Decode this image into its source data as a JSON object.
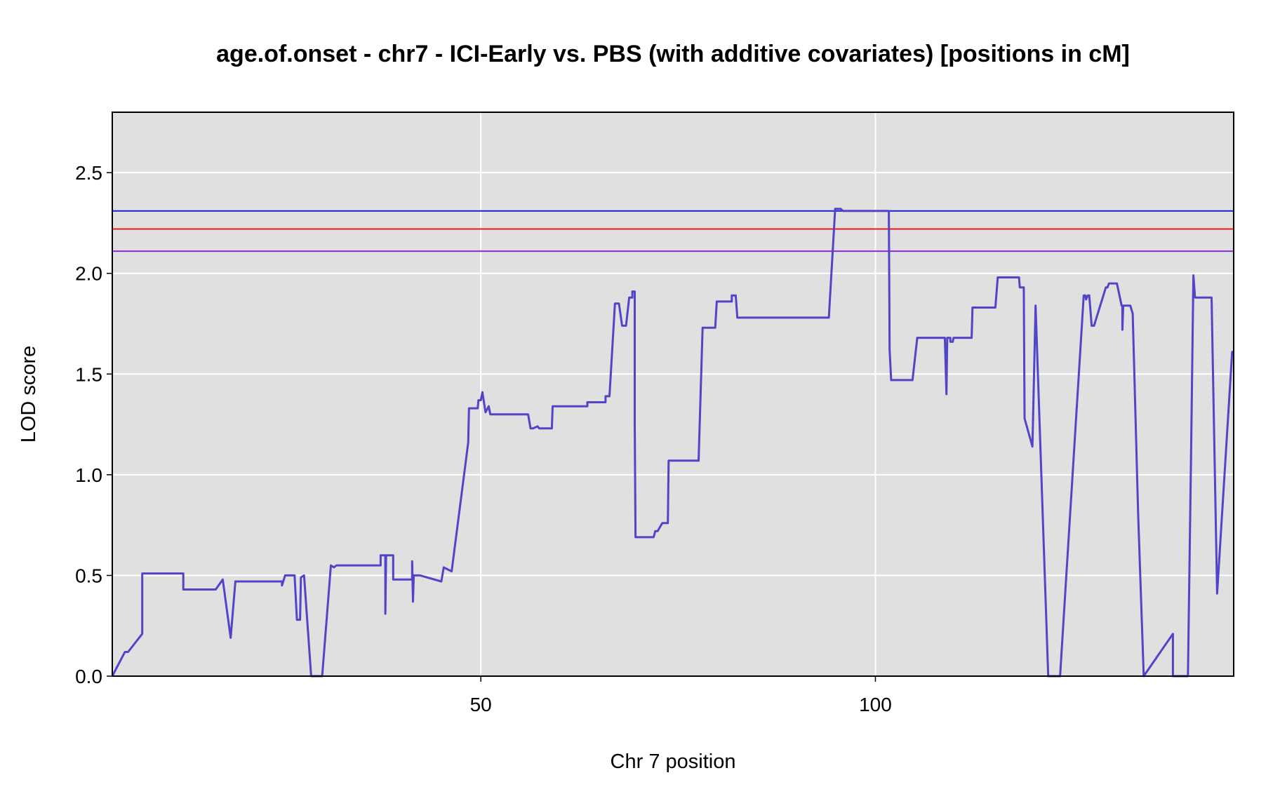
{
  "chart_data": {
    "type": "line",
    "title": "age.of.onset - chr7 - ICI-Early vs. PBS (with additive covariates) [positions in cM]",
    "xlabel": "Chr 7 position",
    "ylabel": "LOD score",
    "xlim": [
      3.3,
      145.4
    ],
    "ylim": [
      0,
      2.8
    ],
    "x_ticks": [
      50,
      100
    ],
    "y_ticks": [
      0.0,
      0.5,
      1.0,
      1.5,
      2.0,
      2.5
    ],
    "x_tick_labels": [
      "50",
      "100"
    ],
    "y_tick_labels": [
      "0.0",
      "0.5",
      "1.0",
      "1.5",
      "2.0",
      "2.5"
    ],
    "grid": true,
    "background": "#e0e0e0",
    "thresholds": [
      {
        "value": 2.31,
        "color": "#1f1fd0"
      },
      {
        "value": 2.22,
        "color": "#e41a1c"
      },
      {
        "value": 2.11,
        "color": "#8a2be2"
      }
    ],
    "series": [
      {
        "color": "#5244c8",
        "points": [
          [
            3.3,
            0.0
          ],
          [
            4.9,
            0.12
          ],
          [
            5.3,
            0.12
          ],
          [
            7.1,
            0.21
          ],
          [
            7.1,
            0.51
          ],
          [
            12.3,
            0.51
          ],
          [
            12.3,
            0.43
          ],
          [
            16.4,
            0.43
          ],
          [
            17.3,
            0.48
          ],
          [
            18.3,
            0.19
          ],
          [
            18.9,
            0.47
          ],
          [
            24.8,
            0.47
          ],
          [
            24.8,
            0.45
          ],
          [
            25.2,
            0.5
          ],
          [
            26.4,
            0.5
          ],
          [
            26.7,
            0.28
          ],
          [
            27.1,
            0.28
          ],
          [
            27.2,
            0.49
          ],
          [
            27.6,
            0.5
          ],
          [
            28.5,
            0.0
          ],
          [
            29.9,
            0.0
          ],
          [
            31.0,
            0.55
          ],
          [
            31.4,
            0.54
          ],
          [
            31.7,
            0.55
          ],
          [
            37.3,
            0.55
          ],
          [
            37.3,
            0.6
          ],
          [
            37.9,
            0.6
          ],
          [
            37.9,
            0.31
          ],
          [
            38.0,
            0.6
          ],
          [
            38.9,
            0.6
          ],
          [
            38.9,
            0.48
          ],
          [
            41.3,
            0.48
          ],
          [
            41.3,
            0.57
          ],
          [
            41.4,
            0.37
          ],
          [
            41.5,
            0.5
          ],
          [
            42.3,
            0.5
          ],
          [
            45.0,
            0.47
          ],
          [
            45.3,
            0.54
          ],
          [
            46.3,
            0.52
          ],
          [
            48.4,
            1.16
          ],
          [
            48.5,
            1.33
          ],
          [
            49.6,
            1.33
          ],
          [
            49.7,
            1.37
          ],
          [
            50.0,
            1.37
          ],
          [
            50.2,
            1.41
          ],
          [
            50.6,
            1.31
          ],
          [
            51.0,
            1.34
          ],
          [
            51.2,
            1.3
          ],
          [
            56.0,
            1.3
          ],
          [
            56.3,
            1.23
          ],
          [
            56.6,
            1.23
          ],
          [
            57.2,
            1.24
          ],
          [
            57.4,
            1.23
          ],
          [
            59.0,
            1.23
          ],
          [
            59.1,
            1.34
          ],
          [
            63.5,
            1.34
          ],
          [
            63.5,
            1.36
          ],
          [
            65.8,
            1.36
          ],
          [
            65.8,
            1.39
          ],
          [
            66.3,
            1.39
          ],
          [
            67.0,
            1.85
          ],
          [
            67.5,
            1.85
          ],
          [
            67.9,
            1.74
          ],
          [
            68.4,
            1.74
          ],
          [
            68.8,
            1.88
          ],
          [
            69.2,
            1.88
          ],
          [
            69.2,
            1.91
          ],
          [
            69.5,
            1.91
          ],
          [
            69.5,
            1.26
          ],
          [
            69.6,
            0.69
          ],
          [
            71.9,
            0.69
          ],
          [
            72.1,
            0.72
          ],
          [
            72.4,
            0.72
          ],
          [
            73.0,
            0.76
          ],
          [
            73.7,
            0.76
          ],
          [
            73.8,
            1.07
          ],
          [
            77.6,
            1.07
          ],
          [
            78.1,
            1.73
          ],
          [
            79.7,
            1.73
          ],
          [
            79.9,
            1.86
          ],
          [
            81.8,
            1.86
          ],
          [
            81.8,
            1.89
          ],
          [
            82.3,
            1.89
          ],
          [
            82.5,
            1.78
          ],
          [
            91.2,
            1.78
          ],
          [
            91.3,
            1.78
          ],
          [
            94.1,
            1.78
          ],
          [
            94.9,
            2.32
          ],
          [
            95.6,
            2.32
          ],
          [
            95.9,
            2.31
          ],
          [
            98.1,
            2.31
          ],
          [
            98.2,
            2.31
          ],
          [
            101.6,
            2.31
          ],
          [
            101.7,
            2.31
          ],
          [
            101.8,
            1.62
          ],
          [
            102.0,
            1.47
          ],
          [
            104.7,
            1.47
          ],
          [
            105.3,
            1.68
          ],
          [
            108.8,
            1.68
          ],
          [
            109.0,
            1.4
          ],
          [
            109.1,
            1.68
          ],
          [
            109.5,
            1.68
          ],
          [
            109.5,
            1.66
          ],
          [
            109.8,
            1.66
          ],
          [
            109.9,
            1.68
          ],
          [
            112.2,
            1.68
          ],
          [
            112.3,
            1.83
          ],
          [
            115.2,
            1.83
          ],
          [
            115.5,
            1.98
          ],
          [
            118.2,
            1.98
          ],
          [
            118.3,
            1.93
          ],
          [
            118.8,
            1.93
          ],
          [
            118.9,
            1.28
          ],
          [
            119.9,
            1.14
          ],
          [
            120.3,
            1.84
          ],
          [
            121.9,
            0.0
          ],
          [
            123.4,
            0.0
          ],
          [
            126.4,
            1.89
          ],
          [
            126.6,
            1.89
          ],
          [
            126.7,
            1.87
          ],
          [
            126.9,
            1.89
          ],
          [
            127.1,
            1.89
          ],
          [
            127.4,
            1.74
          ],
          [
            127.7,
            1.74
          ],
          [
            129.2,
            1.93
          ],
          [
            129.4,
            1.93
          ],
          [
            129.6,
            1.95
          ],
          [
            130.6,
            1.95
          ],
          [
            131.2,
            1.84
          ],
          [
            131.3,
            1.84
          ],
          [
            131.3,
            1.72
          ],
          [
            131.4,
            1.84
          ],
          [
            132.3,
            1.84
          ],
          [
            132.6,
            1.8
          ],
          [
            133.3,
            0.8
          ],
          [
            134.0,
            0.0
          ],
          [
            137.7,
            0.21
          ],
          [
            137.7,
            0.0
          ],
          [
            139.6,
            0.0
          ],
          [
            140.0,
            1.11
          ],
          [
            140.3,
            1.99
          ],
          [
            140.5,
            1.88
          ],
          [
            142.6,
            1.88
          ],
          [
            143.3,
            0.41
          ],
          [
            145.2,
            1.61
          ],
          [
            145.4,
            1.61
          ]
        ]
      }
    ]
  }
}
